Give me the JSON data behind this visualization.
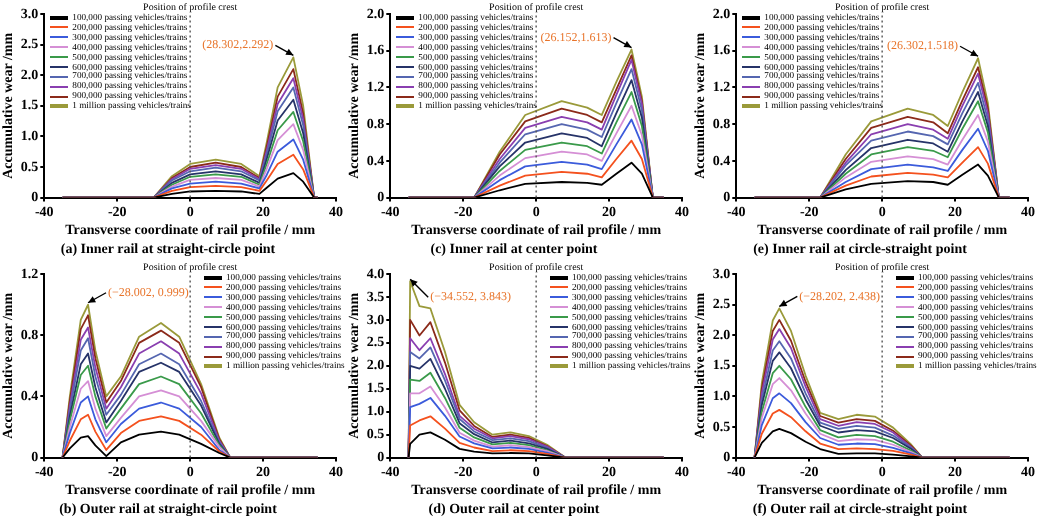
{
  "chart_data": [
    {
      "type": "line",
      "title": "(a) Inner rail at straight-circle point",
      "xlabel": "Transverse coordinate of rail profile / mm",
      "ylabel": "Accumulative wear /mm",
      "legend": "top left",
      "xlim": [
        -40,
        40
      ],
      "xticks": [
        -40,
        -20,
        0,
        20,
        40
      ],
      "ylim": [
        0,
        3
      ],
      "yticks": [
        0,
        0.5,
        {
          "value": 1,
          "label": "1.0"
        },
        1.5,
        {
          "value": 2,
          "label": "2.0"
        },
        2.5,
        {
          "value": 3,
          "label": "3.0"
        }
      ],
      "ref_lines": [
        {
          "axis": "x",
          "value": 0,
          "label": "Position of profile crest",
          "line_style": "dotted"
        }
      ],
      "annotations": [
        {
          "text": "(28.302,2.292)",
          "x": 28.302,
          "y": 2.292
        }
      ],
      "x": [
        -35,
        -10,
        -5,
        0,
        7,
        14,
        19,
        21,
        24,
        28.302,
        31,
        34,
        35
      ],
      "series": [
        {
          "name": "100,000 passing vehicles/trains",
          "color": "#000000",
          "values": [
            0,
            0,
            0.06,
            0.1,
            0.11,
            0.1,
            0.06,
            0.16,
            0.31,
            0.4,
            0.26,
            0,
            0
          ]
        },
        {
          "name": "200,000 passing vehicles/trains",
          "color": "#f4511e",
          "values": [
            0,
            0,
            0.11,
            0.17,
            0.19,
            0.17,
            0.11,
            0.28,
            0.55,
            0.7,
            0.46,
            0,
            0
          ]
        },
        {
          "name": "300,000 passing vehicles/trains",
          "color": "#3b5bdb",
          "values": [
            0,
            0,
            0.15,
            0.23,
            0.26,
            0.23,
            0.15,
            0.37,
            0.75,
            0.95,
            0.62,
            0,
            0
          ]
        },
        {
          "name": "400,000 passing vehicles/trains",
          "color": "#d58fd5",
          "values": [
            0,
            0,
            0.18,
            0.29,
            0.32,
            0.29,
            0.18,
            0.47,
            0.94,
            1.2,
            0.78,
            0,
            0
          ]
        },
        {
          "name": "500,000 passing vehicles/trains",
          "color": "#3a9a4a",
          "values": [
            0,
            0,
            0.21,
            0.34,
            0.38,
            0.34,
            0.21,
            0.55,
            1.1,
            1.4,
            0.92,
            0,
            0
          ]
        },
        {
          "name": "600,000 passing vehicles/trains",
          "color": "#263368",
          "values": [
            0,
            0,
            0.24,
            0.38,
            0.43,
            0.38,
            0.24,
            0.63,
            1.26,
            1.6,
            1.05,
            0,
            0
          ]
        },
        {
          "name": "700,000 passing vehicles/trains",
          "color": "#5566b0",
          "values": [
            0,
            0,
            0.28,
            0.43,
            0.49,
            0.43,
            0.28,
            0.71,
            1.41,
            1.8,
            1.18,
            0,
            0
          ]
        },
        {
          "name": "800,000 passing vehicles/trains",
          "color": "#8a3fb0",
          "values": [
            0,
            0,
            0.3,
            0.47,
            0.53,
            0.47,
            0.3,
            0.77,
            1.53,
            1.95,
            1.28,
            0,
            0
          ]
        },
        {
          "name": "900,000 passing vehicles/trains",
          "color": "#8b2a1a",
          "values": [
            0,
            0,
            0.32,
            0.5,
            0.57,
            0.5,
            0.32,
            0.83,
            1.65,
            2.1,
            1.37,
            0,
            0
          ]
        },
        {
          "name": "1 million passing vehicles/trains",
          "color": "#9a9a3a",
          "values": [
            0,
            0,
            0.35,
            0.55,
            0.62,
            0.55,
            0.35,
            0.9,
            1.8,
            2.292,
            1.5,
            0,
            0
          ]
        }
      ]
    },
    {
      "type": "line",
      "title": "(c) Inner rail at center point",
      "xlabel": "Transverse coordinate of rail profile / mm",
      "ylabel": "Accumulative wear /mm",
      "legend": "top left",
      "xlim": [
        -40,
        40
      ],
      "xticks": [
        -40,
        -20,
        0,
        20,
        40
      ],
      "ylim": [
        0,
        2
      ],
      "yticks": [
        0,
        0.4,
        0.8,
        1.2,
        1.6,
        {
          "value": 2,
          "label": "2.0"
        }
      ],
      "ref_lines": [
        {
          "axis": "x",
          "value": 0,
          "label": "Position of profile crest",
          "line_style": "dotted"
        }
      ],
      "annotations": [
        {
          "text": "(26.152,1.613)",
          "x": 26.152,
          "y": 1.613
        }
      ],
      "x": [
        -35,
        -17,
        -10,
        -3,
        7,
        14,
        18,
        22,
        26.152,
        29,
        32,
        35
      ],
      "series": [
        {
          "name": "100,000 passing vehicles/trains",
          "color": "#000000",
          "values": [
            0,
            0,
            0.08,
            0.15,
            0.17,
            0.16,
            0.14,
            0.26,
            0.38,
            0.26,
            0,
            0
          ]
        },
        {
          "name": "200,000 passing vehicles/trains",
          "color": "#f4511e",
          "values": [
            0,
            0,
            0.13,
            0.24,
            0.28,
            0.26,
            0.22,
            0.42,
            0.62,
            0.42,
            0,
            0
          ]
        },
        {
          "name": "300,000 passing vehicles/trains",
          "color": "#3b5bdb",
          "values": [
            0,
            0,
            0.19,
            0.34,
            0.39,
            0.36,
            0.31,
            0.58,
            0.85,
            0.58,
            0,
            0
          ]
        },
        {
          "name": "400,000 passing vehicles/trains",
          "color": "#d58fd5",
          "values": [
            0,
            0,
            0.24,
            0.43,
            0.5,
            0.47,
            0.4,
            0.7,
            1.0,
            0.68,
            0,
            0
          ]
        },
        {
          "name": "500,000 passing vehicles/trains",
          "color": "#3a9a4a",
          "values": [
            0,
            0,
            0.29,
            0.52,
            0.6,
            0.56,
            0.48,
            0.82,
            1.15,
            0.78,
            0,
            0
          ]
        },
        {
          "name": "600,000 passing vehicles/trains",
          "color": "#263368",
          "values": [
            0,
            0,
            0.34,
            0.6,
            0.7,
            0.65,
            0.56,
            0.92,
            1.28,
            0.87,
            0,
            0
          ]
        },
        {
          "name": "700,000 passing vehicles/trains",
          "color": "#5566b0",
          "values": [
            0,
            0,
            0.38,
            0.69,
            0.8,
            0.74,
            0.66,
            1.03,
            1.4,
            0.95,
            0,
            0
          ]
        },
        {
          "name": "800,000 passing vehicles/trains",
          "color": "#8a3fb0",
          "values": [
            0,
            0,
            0.42,
            0.76,
            0.88,
            0.82,
            0.74,
            1.12,
            1.5,
            1.02,
            0,
            0
          ]
        },
        {
          "name": "900,000 passing vehicles/trains",
          "color": "#8b2a1a",
          "values": [
            0,
            0,
            0.47,
            0.83,
            0.97,
            0.9,
            0.82,
            1.18,
            1.55,
            1.05,
            0,
            0
          ]
        },
        {
          "name": "1 million passing vehicles/trains",
          "color": "#9a9a3a",
          "values": [
            0,
            0,
            0.5,
            0.9,
            1.05,
            0.98,
            0.9,
            1.26,
            1.613,
            1.1,
            0,
            0
          ]
        }
      ]
    },
    {
      "type": "line",
      "title": "(e) Inner rail at circle-straight point",
      "xlabel": "Transverse coordinate of rail profile / mm",
      "ylabel": "Accumulative wear /mm",
      "legend": "top left",
      "xlim": [
        -40,
        40
      ],
      "xticks": [
        -40,
        -20,
        0,
        20,
        40
      ],
      "ylim": [
        0,
        2
      ],
      "yticks": [
        0,
        0.4,
        0.8,
        1.2,
        1.6,
        {
          "value": 2,
          "label": "2.0"
        }
      ],
      "ref_lines": [
        {
          "axis": "x",
          "value": 0,
          "label": "Position of profile crest",
          "line_style": "dotted"
        }
      ],
      "annotations": [
        {
          "text": "(26.302,1.518)",
          "x": 26.302,
          "y": 1.518
        }
      ],
      "x": [
        -35,
        -17,
        -10,
        -3,
        7,
        14,
        18,
        22,
        26.302,
        29,
        32,
        35
      ],
      "series": [
        {
          "name": "100,000 passing vehicles/trains",
          "color": "#000000",
          "values": [
            0,
            0,
            0.09,
            0.15,
            0.18,
            0.17,
            0.14,
            0.25,
            0.36,
            0.24,
            0,
            0
          ]
        },
        {
          "name": "200,000 passing vehicles/trains",
          "color": "#f4511e",
          "values": [
            0,
            0,
            0.13,
            0.23,
            0.27,
            0.25,
            0.22,
            0.38,
            0.55,
            0.37,
            0,
            0
          ]
        },
        {
          "name": "300,000 passing vehicles/trains",
          "color": "#3b5bdb",
          "values": [
            0,
            0,
            0.17,
            0.31,
            0.36,
            0.33,
            0.29,
            0.52,
            0.75,
            0.51,
            0,
            0
          ]
        },
        {
          "name": "400,000 passing vehicles/trains",
          "color": "#d58fd5",
          "values": [
            0,
            0,
            0.22,
            0.39,
            0.45,
            0.42,
            0.36,
            0.63,
            0.9,
            0.61,
            0,
            0
          ]
        },
        {
          "name": "500,000 passing vehicles/trains",
          "color": "#3a9a4a",
          "values": [
            0,
            0,
            0.26,
            0.47,
            0.55,
            0.51,
            0.44,
            0.75,
            1.05,
            0.71,
            0,
            0
          ]
        },
        {
          "name": "600,000 passing vehicles/trains",
          "color": "#263368",
          "values": [
            0,
            0,
            0.3,
            0.54,
            0.63,
            0.59,
            0.5,
            0.83,
            1.15,
            0.78,
            0,
            0
          ]
        },
        {
          "name": "700,000 passing vehicles/trains",
          "color": "#5566b0",
          "values": [
            0,
            0,
            0.35,
            0.62,
            0.72,
            0.67,
            0.58,
            0.92,
            1.25,
            0.85,
            0,
            0
          ]
        },
        {
          "name": "800,000 passing vehicles/trains",
          "color": "#8a3fb0",
          "values": [
            0,
            0,
            0.38,
            0.69,
            0.8,
            0.74,
            0.64,
            1.0,
            1.35,
            0.92,
            0,
            0
          ]
        },
        {
          "name": "900,000 passing vehicles/trains",
          "color": "#8b2a1a",
          "values": [
            0,
            0,
            0.42,
            0.76,
            0.88,
            0.82,
            0.7,
            1.06,
            1.42,
            0.97,
            0,
            0
          ]
        },
        {
          "name": "1 million passing vehicles/trains",
          "color": "#9a9a3a",
          "values": [
            0,
            0,
            0.47,
            0.83,
            0.97,
            0.9,
            0.78,
            1.15,
            1.518,
            1.03,
            0,
            0
          ]
        }
      ]
    },
    {
      "type": "line",
      "title": "(b) Outer rail at straight-circle point",
      "xlabel": "Transverse coordinate of rail profile / mm",
      "ylabel": "Accumulative wear /mm",
      "legend": "top right",
      "xlim": [
        -40,
        40
      ],
      "xticks": [
        -40,
        -20,
        0,
        20,
        40
      ],
      "ylim": [
        0,
        1.2
      ],
      "yticks": [
        0,
        0.4,
        0.8,
        1.2
      ],
      "ref_lines": [
        {
          "axis": "x",
          "value": 0,
          "label": "Position of profile crest",
          "line_style": "dotted"
        }
      ],
      "annotations": [
        {
          "text": "(−28.002, 0.999)",
          "x": -28.002,
          "y": 0.999
        }
      ],
      "x": [
        -35,
        -33,
        -30,
        -28.002,
        -26,
        -23,
        -19,
        -14,
        -8,
        -3,
        3,
        8,
        11,
        35
      ],
      "series": [
        {
          "name": "100,000 passing vehicles/trains",
          "color": "#000000",
          "values": [
            0,
            0.06,
            0.13,
            0.14,
            0.08,
            0.01,
            0.1,
            0.15,
            0.17,
            0.15,
            0.09,
            0.03,
            0,
            0
          ]
        },
        {
          "name": "200,000 passing vehicles/trains",
          "color": "#f4511e",
          "values": [
            0,
            0.11,
            0.25,
            0.28,
            0.17,
            0.05,
            0.16,
            0.24,
            0.27,
            0.24,
            0.15,
            0.04,
            0,
            0
          ]
        },
        {
          "name": "300,000 passing vehicles/trains",
          "color": "#3b5bdb",
          "values": [
            0,
            0.16,
            0.36,
            0.4,
            0.25,
            0.1,
            0.22,
            0.32,
            0.36,
            0.32,
            0.2,
            0.05,
            0,
            0
          ]
        },
        {
          "name": "400,000 passing vehicles/trains",
          "color": "#d58fd5",
          "values": [
            0,
            0.2,
            0.45,
            0.5,
            0.32,
            0.14,
            0.26,
            0.4,
            0.44,
            0.4,
            0.24,
            0.07,
            0,
            0
          ]
        },
        {
          "name": "500,000 passing vehicles/trains",
          "color": "#3a9a4a",
          "values": [
            0,
            0.24,
            0.54,
            0.6,
            0.4,
            0.19,
            0.32,
            0.48,
            0.53,
            0.48,
            0.29,
            0.08,
            0,
            0
          ]
        },
        {
          "name": "600,000 passing vehicles/trains",
          "color": "#263368",
          "values": [
            0,
            0.27,
            0.61,
            0.68,
            0.46,
            0.23,
            0.37,
            0.56,
            0.62,
            0.56,
            0.34,
            0.09,
            0,
            0
          ]
        },
        {
          "name": "700,000 passing vehicles/trains",
          "color": "#5566b0",
          "values": [
            0,
            0.31,
            0.7,
            0.78,
            0.53,
            0.28,
            0.41,
            0.61,
            0.68,
            0.61,
            0.37,
            0.1,
            0,
            0
          ]
        },
        {
          "name": "800,000 passing vehicles/trains",
          "color": "#8a3fb0",
          "values": [
            0,
            0.34,
            0.77,
            0.85,
            0.59,
            0.32,
            0.46,
            0.68,
            0.76,
            0.68,
            0.42,
            0.11,
            0,
            0
          ]
        },
        {
          "name": "900,000 passing vehicles/trains",
          "color": "#8b2a1a",
          "values": [
            0,
            0.37,
            0.84,
            0.93,
            0.65,
            0.36,
            0.5,
            0.75,
            0.83,
            0.75,
            0.46,
            0.12,
            0,
            0
          ]
        },
        {
          "name": "1 million passing vehicles/trains",
          "color": "#9a9a3a",
          "values": [
            0,
            0.4,
            0.9,
            0.999,
            0.7,
            0.4,
            0.53,
            0.79,
            0.88,
            0.79,
            0.48,
            0.13,
            0,
            0
          ]
        }
      ]
    },
    {
      "type": "line",
      "title": "(d) Outer rail at center point",
      "xlabel": "Transverse coordinate of rail profile / mm",
      "ylabel": "Accumulative wear /mm",
      "legend": "top right",
      "xlim": [
        -40,
        40
      ],
      "xticks": [
        -40,
        -20,
        0,
        20,
        40
      ],
      "ylim": [
        0,
        4
      ],
      "yticks": [
        0,
        0.5,
        {
          "value": 1,
          "label": "1.0"
        },
        1.5,
        {
          "value": 2,
          "label": "2.0"
        },
        2.5,
        {
          "value": 3,
          "label": "3.0"
        },
        3.5,
        {
          "value": 4,
          "label": "4.0"
        }
      ],
      "ref_lines": [
        {
          "axis": "x",
          "value": 0,
          "label": "Position of profile crest",
          "line_style": "dotted"
        }
      ],
      "annotations": [
        {
          "text": "(−34.552, 3.843)",
          "x": -34.552,
          "y": 3.843
        }
      ],
      "x": [
        -35,
        -34.552,
        -32,
        -29,
        -25,
        -21,
        -17,
        -12,
        -7,
        -2,
        3,
        8,
        35
      ],
      "series": [
        {
          "name": "100,000 passing vehicles/trains",
          "color": "#000000",
          "values": [
            0,
            0.3,
            0.5,
            0.55,
            0.39,
            0.19,
            0.13,
            0.09,
            0.1,
            0.09,
            0.05,
            0,
            0
          ]
        },
        {
          "name": "200,000 passing vehicles/trains",
          "color": "#f4511e",
          "values": [
            0,
            0.7,
            0.81,
            0.9,
            0.63,
            0.32,
            0.22,
            0.14,
            0.16,
            0.14,
            0.08,
            0,
            0
          ]
        },
        {
          "name": "300,000 passing vehicles/trains",
          "color": "#3b5bdb",
          "values": [
            0,
            1.1,
            1.17,
            1.3,
            0.91,
            0.46,
            0.31,
            0.2,
            0.22,
            0.19,
            0.11,
            0,
            0
          ]
        },
        {
          "name": "400,000 passing vehicles/trains",
          "color": "#d58fd5",
          "values": [
            0,
            1.4,
            1.4,
            1.55,
            1.09,
            0.54,
            0.37,
            0.24,
            0.27,
            0.23,
            0.14,
            0,
            0
          ]
        },
        {
          "name": "500,000 passing vehicles/trains",
          "color": "#3a9a4a",
          "values": [
            0,
            1.7,
            1.67,
            1.85,
            1.3,
            0.65,
            0.44,
            0.29,
            0.32,
            0.27,
            0.16,
            0,
            0
          ]
        },
        {
          "name": "600,000 passing vehicles/trains",
          "color": "#263368",
          "values": [
            0,
            2.0,
            1.94,
            2.15,
            1.5,
            0.75,
            0.51,
            0.33,
            0.37,
            0.31,
            0.19,
            0,
            0
          ]
        },
        {
          "name": "700,000 passing vehicles/trains",
          "color": "#5566b0",
          "values": [
            0,
            2.3,
            2.16,
            2.4,
            1.68,
            0.84,
            0.57,
            0.38,
            0.42,
            0.36,
            0.21,
            0,
            0
          ]
        },
        {
          "name": "800,000 passing vehicles/trains",
          "color": "#8a3fb0",
          "values": [
            0,
            2.6,
            2.34,
            2.6,
            1.82,
            0.91,
            0.63,
            0.42,
            0.47,
            0.4,
            0.24,
            0,
            0
          ]
        },
        {
          "name": "900,000 passing vehicles/trains",
          "color": "#8b2a1a",
          "values": [
            0,
            3.0,
            2.66,
            2.95,
            2.07,
            1.03,
            0.69,
            0.45,
            0.5,
            0.43,
            0.25,
            0,
            0
          ]
        },
        {
          "name": "1 million passing vehicles/trains",
          "color": "#9a9a3a",
          "values": [
            0,
            3.843,
            3.3,
            3.25,
            2.3,
            1.15,
            0.77,
            0.5,
            0.55,
            0.47,
            0.28,
            0,
            0
          ]
        }
      ]
    },
    {
      "type": "line",
      "title": "(f) Outer rail at circle-straight point",
      "xlabel": "Transverse coordinate of rail profile / mm",
      "ylabel": "Accumulative wear /mm",
      "legend": "top right",
      "xlim": [
        -40,
        40
      ],
      "xticks": [
        -40,
        -20,
        0,
        20,
        40
      ],
      "ylim": [
        0,
        3
      ],
      "yticks": [
        0,
        0.5,
        {
          "value": 1,
          "label": "1.0"
        },
        1.5,
        {
          "value": 2,
          "label": "2.0"
        },
        2.5,
        {
          "value": 3,
          "label": "3.0"
        }
      ],
      "ref_lines": [
        {
          "axis": "x",
          "value": 0,
          "label": "Position of profile crest",
          "line_style": "dotted"
        }
      ],
      "annotations": [
        {
          "text": "(−28.202, 2.438)",
          "x": -28.202,
          "y": 2.438
        }
      ],
      "x": [
        -35,
        -33,
        -30,
        -28.202,
        -25,
        -21,
        -17,
        -12,
        -7,
        -2,
        3,
        8,
        11,
        35
      ],
      "series": [
        {
          "name": "100,000 passing vehicles/trains",
          "color": "#000000",
          "values": [
            0,
            0.24,
            0.43,
            0.47,
            0.4,
            0.26,
            0.14,
            0.06,
            0.07,
            0.07,
            0.05,
            0.02,
            0,
            0
          ]
        },
        {
          "name": "200,000 passing vehicles/trains",
          "color": "#f4511e",
          "values": [
            0,
            0.39,
            0.72,
            0.78,
            0.66,
            0.43,
            0.23,
            0.14,
            0.15,
            0.14,
            0.11,
            0.05,
            0,
            0
          ]
        },
        {
          "name": "300,000 passing vehicles/trains",
          "color": "#3b5bdb",
          "values": [
            0,
            0.53,
            0.97,
            1.05,
            0.89,
            0.58,
            0.32,
            0.21,
            0.23,
            0.22,
            0.16,
            0.07,
            0,
            0
          ]
        },
        {
          "name": "400,000 passing vehicles/trains",
          "color": "#d58fd5",
          "values": [
            0,
            0.65,
            1.2,
            1.3,
            1.1,
            0.72,
            0.39,
            0.27,
            0.3,
            0.29,
            0.21,
            0.09,
            0,
            0
          ]
        },
        {
          "name": "500,000 passing vehicles/trains",
          "color": "#3a9a4a",
          "values": [
            0,
            0.75,
            1.38,
            1.5,
            1.28,
            0.83,
            0.45,
            0.33,
            0.37,
            0.35,
            0.26,
            0.11,
            0,
            0
          ]
        },
        {
          "name": "600,000 passing vehicles/trains",
          "color": "#263368",
          "values": [
            0,
            0.86,
            1.58,
            1.72,
            1.46,
            0.95,
            0.52,
            0.41,
            0.45,
            0.43,
            0.32,
            0.14,
            0,
            0
          ]
        },
        {
          "name": "700,000 passing vehicles/trains",
          "color": "#5566b0",
          "values": [
            0,
            0.95,
            1.75,
            1.9,
            1.62,
            1.05,
            0.57,
            0.47,
            0.52,
            0.49,
            0.36,
            0.16,
            0,
            0
          ]
        },
        {
          "name": "800,000 passing vehicles/trains",
          "color": "#8a3fb0",
          "values": [
            0,
            1.05,
            1.93,
            2.1,
            1.79,
            1.16,
            0.63,
            0.52,
            0.58,
            0.55,
            0.41,
            0.17,
            0,
            0
          ]
        },
        {
          "name": "900,000 passing vehicles/trains",
          "color": "#8b2a1a",
          "values": [
            0,
            1.13,
            2.07,
            2.25,
            1.91,
            1.24,
            0.68,
            0.57,
            0.63,
            0.6,
            0.44,
            0.19,
            0,
            0
          ]
        },
        {
          "name": "1 million passing vehicles/trains",
          "color": "#9a9a3a",
          "values": [
            0,
            1.22,
            2.24,
            2.438,
            2.07,
            1.34,
            0.73,
            0.63,
            0.7,
            0.67,
            0.49,
            0.21,
            0,
            0
          ]
        }
      ]
    }
  ]
}
